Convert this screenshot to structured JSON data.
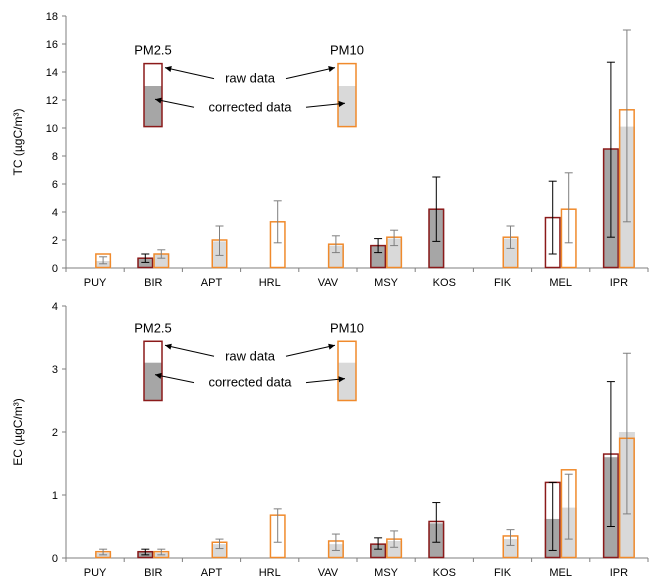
{
  "colors": {
    "pm25_edge": "#8B1A1A",
    "pm25_fill": "#A6A6A6",
    "pm10_edge": "#F08A2C",
    "pm10_fill": "#D9D9D9",
    "err_pm25": "#000000",
    "err_pm10": "#7F7F7F",
    "axis": "#7F7F7F"
  },
  "chart_data": [
    {
      "type": "bar",
      "ylabel": "TC (µgC/m³)",
      "ylim": [
        0,
        18
      ],
      "yticks": [
        0,
        2,
        4,
        6,
        8,
        10,
        12,
        14,
        16,
        18
      ],
      "categories": [
        "PUY",
        "BIR",
        "APT",
        "HRL",
        "VAV",
        "MSY",
        "KOS",
        "FIK",
        "MEL",
        "IPR"
      ],
      "series": [
        {
          "name": "PM2.5",
          "raw": [
            null,
            0.7,
            null,
            null,
            null,
            1.6,
            4.2,
            null,
            3.6,
            8.5
          ],
          "corrected": [
            null,
            0.7,
            null,
            null,
            null,
            1.6,
            4.2,
            null,
            0,
            8.5
          ],
          "err_low": [
            null,
            0.4,
            null,
            null,
            null,
            1.1,
            1.9,
            null,
            1.0,
            2.2
          ],
          "err_high": [
            null,
            1.0,
            null,
            null,
            null,
            2.1,
            6.5,
            null,
            6.2,
            14.7
          ]
        },
        {
          "name": "PM10",
          "raw": [
            1.0,
            1.0,
            2.0,
            3.3,
            1.7,
            2.2,
            null,
            2.2,
            4.2,
            11.3
          ],
          "corrected": [
            0.5,
            1.0,
            1.9,
            0,
            1.6,
            2.1,
            null,
            2.1,
            0,
            10.1
          ],
          "err_low": [
            0.3,
            0.7,
            0.9,
            1.8,
            1.1,
            1.6,
            null,
            1.4,
            1.8,
            3.3
          ],
          "err_high": [
            0.8,
            1.3,
            3.0,
            4.8,
            2.3,
            2.7,
            null,
            3.0,
            6.8,
            17.0
          ]
        }
      ],
      "legend": {
        "pm25_label": "PM2.5",
        "pm10_label": "PM10",
        "raw_label": "raw data",
        "corrected_label": "corrected data",
        "box_raw_top": 14.6,
        "box_corrected_top": 13.0,
        "box_bottom": 10.1
      }
    },
    {
      "type": "bar",
      "ylabel": "EC (µgC/m³)",
      "ylim": [
        0,
        4
      ],
      "yticks": [
        0,
        1,
        2,
        3,
        4
      ],
      "categories": [
        "PUY",
        "BIR",
        "APT",
        "HRL",
        "VAV",
        "MSY",
        "KOS",
        "FIK",
        "MEL",
        "IPR"
      ],
      "series": [
        {
          "name": "PM2.5",
          "raw": [
            null,
            0.1,
            null,
            null,
            null,
            0.22,
            0.58,
            null,
            1.2,
            1.65
          ],
          "corrected": [
            null,
            0.1,
            null,
            null,
            null,
            0.22,
            0.55,
            null,
            0.62,
            1.6
          ],
          "err_low": [
            null,
            0.05,
            null,
            null,
            null,
            0.14,
            0.25,
            null,
            0.12,
            0.5
          ],
          "err_high": [
            null,
            0.14,
            null,
            null,
            null,
            0.32,
            0.88,
            null,
            1.2,
            2.8
          ]
        },
        {
          "name": "PM10",
          "raw": [
            0.1,
            0.1,
            0.25,
            0.68,
            0.27,
            0.3,
            null,
            0.35,
            1.4,
            1.9
          ],
          "corrected": [
            0.08,
            0.08,
            0.22,
            0,
            0.22,
            0.27,
            null,
            0.3,
            0.8,
            2.0
          ],
          "err_low": [
            0.05,
            0.05,
            0.15,
            0.25,
            0.12,
            0.17,
            null,
            0.2,
            0.3,
            0.7
          ],
          "err_high": [
            0.14,
            0.14,
            0.3,
            0.78,
            0.38,
            0.43,
            null,
            0.45,
            1.33,
            3.25
          ]
        }
      ],
      "legend": {
        "pm25_label": "PM2.5",
        "pm10_label": "PM10",
        "raw_label": "raw data",
        "corrected_label": "corrected data",
        "box_raw_top": 3.44,
        "box_corrected_top": 3.1,
        "box_bottom": 2.5
      }
    }
  ]
}
